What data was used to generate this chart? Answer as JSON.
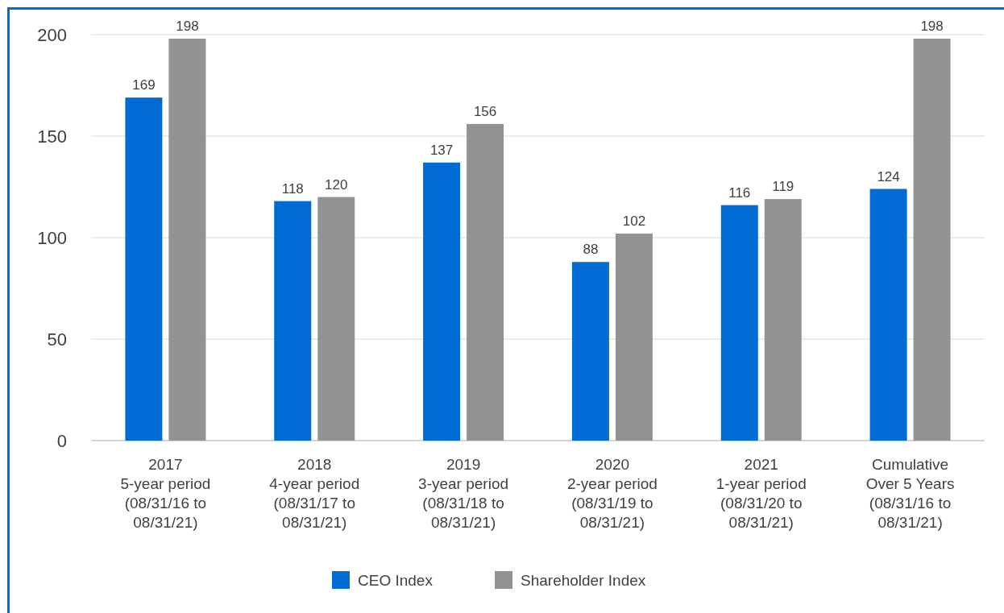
{
  "chart_data": {
    "type": "bar",
    "categories": [
      "2017\n5-year period\n(08/31/16 to\n08/31/21)",
      "2018\n4-year period\n(08/31/17 to\n08/31/21)",
      "2019\n3-year period\n(08/31/18 to\n08/31/21)",
      "2020\n2-year period\n(08/31/19 to\n08/31/21)",
      "2021\n1-year period\n(08/31/20 to\n08/31/21)",
      "Cumulative\nOver 5 Years\n(08/31/16 to\n08/31/21)"
    ],
    "series": [
      {
        "name": "CEO Index",
        "color": "#006cd3",
        "values": [
          169,
          118,
          137,
          88,
          116,
          124
        ]
      },
      {
        "name": "Shareholder Index",
        "color": "#929292",
        "values": [
          198,
          120,
          156,
          102,
          119,
          198
        ]
      }
    ],
    "ylim": [
      0,
      200
    ],
    "yticks": [
      0,
      50,
      100,
      150,
      200
    ],
    "grid": "y",
    "legend": "bottom",
    "data_labels": true
  }
}
